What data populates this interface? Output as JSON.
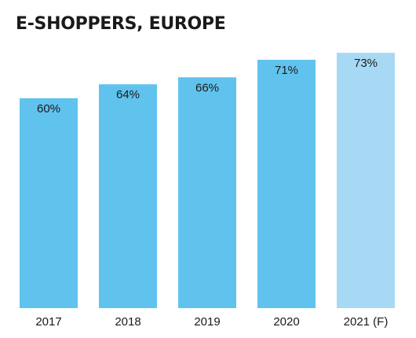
{
  "chart_data": {
    "type": "bar",
    "title": "E-SHOPPERS, EUROPE",
    "xlabel": "",
    "ylabel": "",
    "categories": [
      "2017",
      "2018",
      "2019",
      "2020",
      "2021 (F)"
    ],
    "values": [
      60,
      64,
      66,
      71,
      73
    ],
    "data_labels": [
      "60%",
      "64%",
      "66%",
      "71%",
      "73%"
    ],
    "value_unit": "%",
    "forecast_flags": [
      false,
      false,
      false,
      false,
      true
    ],
    "colors": {
      "actual": "#60c3ee",
      "forecast": "#a7d9f4",
      "text": "#1a1a1a"
    },
    "grid": false,
    "legend": "none"
  }
}
